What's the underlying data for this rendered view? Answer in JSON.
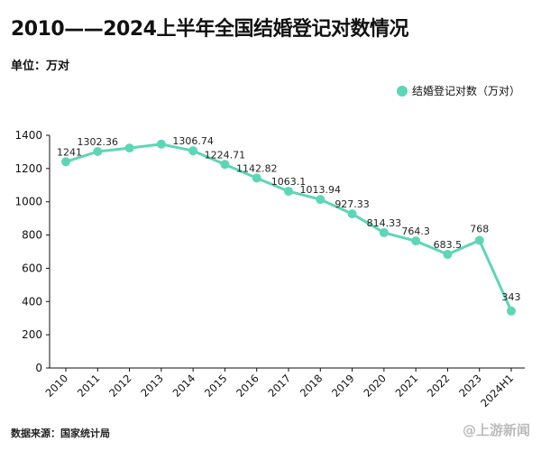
{
  "header": {
    "title": "2010——2024上半年全国结婚登记对数情况",
    "unit": "单位：万对"
  },
  "footer": {
    "source": "数据来源：国家统计局",
    "watermark": "@上游新闻"
  },
  "colors": {
    "series": "#5dd6b6",
    "axis": "#111111",
    "text": "#111111"
  },
  "chart_data": {
    "type": "line",
    "title": "2010——2024上半年全国结婚登记对数情况",
    "categories": [
      "2010",
      "2011",
      "2012",
      "2013",
      "2014",
      "2015",
      "2016",
      "2017",
      "2018",
      "2019",
      "2020",
      "2021",
      "2022",
      "2023",
      "2024H1"
    ],
    "series": [
      {
        "name": "结婚登记对数（万对）",
        "values": [
          1241,
          1302.36,
          1323.59,
          1346.93,
          1306.74,
          1224.71,
          1142.82,
          1063.1,
          1013.94,
          927.33,
          814.33,
          764.3,
          683.5,
          768,
          343
        ],
        "labels": [
          "1241",
          "1302.36",
          "",
          "",
          "1306.74",
          "1224.71",
          "1142.82",
          "1063.1",
          "1013.94",
          "927.33",
          "814.33",
          "764.3",
          "683.5",
          "768",
          "343"
        ]
      }
    ],
    "ylim": [
      0,
      1400
    ],
    "yticks": [
      0,
      200,
      400,
      600,
      800,
      1000,
      1200,
      1400
    ],
    "grid": false,
    "legend": "top-right"
  }
}
